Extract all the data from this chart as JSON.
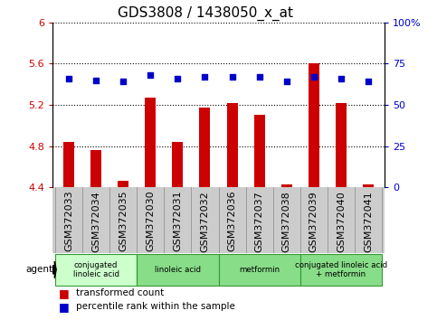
{
  "title": "GDS3808 / 1438050_x_at",
  "samples": [
    "GSM372033",
    "GSM372034",
    "GSM372035",
    "GSM372030",
    "GSM372031",
    "GSM372032",
    "GSM372036",
    "GSM372037",
    "GSM372038",
    "GSM372039",
    "GSM372040",
    "GSM372041"
  ],
  "bar_values": [
    4.84,
    4.76,
    4.46,
    5.27,
    4.84,
    5.17,
    5.22,
    5.1,
    4.43,
    5.6,
    5.22,
    4.43
  ],
  "percentile_values": [
    66,
    65,
    64,
    68,
    66,
    67,
    67,
    67,
    64,
    67,
    66,
    64
  ],
  "bar_bottom": 4.4,
  "ylim_left": [
    4.4,
    6.0
  ],
  "ylim_right": [
    0,
    100
  ],
  "yticks_left": [
    4.4,
    4.8,
    5.2,
    5.6,
    6.0
  ],
  "yticks_right": [
    0,
    25,
    50,
    75,
    100
  ],
  "ytick_labels_left": [
    "4.4",
    "4.8",
    "5.2",
    "5.6",
    "6"
  ],
  "ytick_labels_right": [
    "0",
    "25",
    "50",
    "75",
    "100%"
  ],
  "bar_color": "#cc0000",
  "dot_color": "#0000cc",
  "grid_color": "#000000",
  "plot_bg": "#ffffff",
  "sample_bg": "#cccccc",
  "agent_groups": [
    {
      "label": "conjugated\nlinoleic acid",
      "start": 0,
      "end": 3,
      "color": "#ccffcc"
    },
    {
      "label": "linoleic acid",
      "start": 3,
      "end": 6,
      "color": "#88dd88"
    },
    {
      "label": "metformin",
      "start": 6,
      "end": 9,
      "color": "#88dd88"
    },
    {
      "label": "conjugated linoleic acid\n+ metformin",
      "start": 9,
      "end": 12,
      "color": "#88dd88"
    }
  ],
  "legend_items": [
    {
      "label": "transformed count",
      "color": "#cc0000"
    },
    {
      "label": "percentile rank within the sample",
      "color": "#0000cc"
    }
  ],
  "title_fontsize": 11,
  "tick_fontsize": 8,
  "label_fontsize": 8
}
